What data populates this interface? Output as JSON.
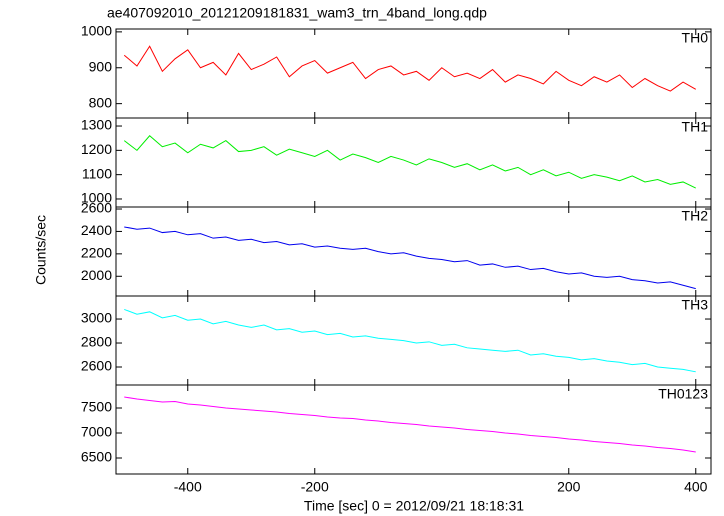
{
  "chart_data": {
    "type": "line",
    "title": "ae407092010_20121209181831_wam3_trn_4band_long.qdp",
    "xlabel": "Time [sec] 0 = 2012/09/21 18:18:31",
    "ylabel": "Counts/sec",
    "xlim": [
      -513,
      424
    ],
    "xticks": [
      -400,
      -200,
      200,
      400
    ],
    "x": [
      -500,
      -480,
      -460,
      -440,
      -420,
      -400,
      -380,
      -360,
      -340,
      -320,
      -300,
      -280,
      -260,
      -240,
      -220,
      -200,
      -180,
      -160,
      -140,
      -120,
      -100,
      -80,
      -60,
      -40,
      -20,
      0,
      20,
      40,
      60,
      80,
      100,
      120,
      140,
      160,
      180,
      200,
      220,
      240,
      260,
      280,
      300,
      320,
      340,
      360,
      380,
      400
    ],
    "series": [
      {
        "name": "TH0",
        "color": "#ff0000",
        "ylim": [
          760,
          1008
        ],
        "yticks": [
          800,
          900,
          1000
        ],
        "values": [
          935,
          905,
          960,
          890,
          925,
          950,
          900,
          915,
          880,
          940,
          895,
          910,
          930,
          875,
          905,
          920,
          885,
          900,
          915,
          870,
          895,
          905,
          880,
          890,
          865,
          900,
          875,
          885,
          870,
          895,
          860,
          880,
          870,
          855,
          890,
          865,
          850,
          875,
          860,
          880,
          845,
          870,
          850,
          835,
          860,
          840
        ]
      },
      {
        "name": "TH1",
        "color": "#00ee00",
        "ylim": [
          967,
          1333
        ],
        "yticks": [
          1000,
          1100,
          1200,
          1300
        ],
        "values": [
          1240,
          1200,
          1260,
          1215,
          1230,
          1190,
          1225,
          1210,
          1240,
          1195,
          1200,
          1215,
          1180,
          1205,
          1190,
          1175,
          1200,
          1160,
          1185,
          1170,
          1150,
          1175,
          1160,
          1140,
          1165,
          1150,
          1130,
          1145,
          1120,
          1140,
          1115,
          1130,
          1100,
          1120,
          1095,
          1110,
          1085,
          1100,
          1090,
          1075,
          1095,
          1070,
          1080,
          1060,
          1070,
          1045
        ]
      },
      {
        "name": "TH2",
        "color": "#0000ee",
        "ylim": [
          1824,
          2618
        ],
        "yticks": [
          2000,
          2200,
          2400,
          2600
        ],
        "values": [
          2440,
          2420,
          2430,
          2390,
          2400,
          2370,
          2380,
          2340,
          2350,
          2320,
          2330,
          2300,
          2310,
          2280,
          2290,
          2260,
          2270,
          2250,
          2240,
          2250,
          2220,
          2200,
          2210,
          2180,
          2160,
          2150,
          2130,
          2140,
          2100,
          2110,
          2080,
          2090,
          2060,
          2070,
          2040,
          2020,
          2030,
          2000,
          1990,
          2000,
          1970,
          1960,
          1940,
          1950,
          1920,
          1890
        ]
      },
      {
        "name": "TH3",
        "color": "#00ffff",
        "ylim": [
          2450,
          3192
        ],
        "yticks": [
          2600,
          2800,
          3000
        ],
        "values": [
          3080,
          3040,
          3060,
          3010,
          3030,
          2990,
          3000,
          2960,
          2980,
          2950,
          2930,
          2950,
          2910,
          2920,
          2890,
          2900,
          2870,
          2880,
          2850,
          2860,
          2840,
          2830,
          2820,
          2800,
          2810,
          2780,
          2790,
          2760,
          2750,
          2740,
          2730,
          2740,
          2700,
          2710,
          2690,
          2680,
          2660,
          2670,
          2650,
          2640,
          2620,
          2630,
          2600,
          2590,
          2580,
          2560
        ]
      },
      {
        "name": "TH0123",
        "color": "#ff00ff",
        "ylim": [
          6180,
          7960
        ],
        "yticks": [
          6500,
          7000,
          7500
        ],
        "values": [
          7720,
          7680,
          7650,
          7620,
          7630,
          7580,
          7560,
          7530,
          7500,
          7480,
          7460,
          7440,
          7420,
          7390,
          7370,
          7350,
          7320,
          7300,
          7290,
          7260,
          7240,
          7210,
          7190,
          7170,
          7140,
          7120,
          7100,
          7070,
          7050,
          7030,
          7000,
          6980,
          6950,
          6930,
          6910,
          6880,
          6860,
          6830,
          6810,
          6790,
          6760,
          6740,
          6710,
          6690,
          6660,
          6620
        ]
      }
    ]
  }
}
